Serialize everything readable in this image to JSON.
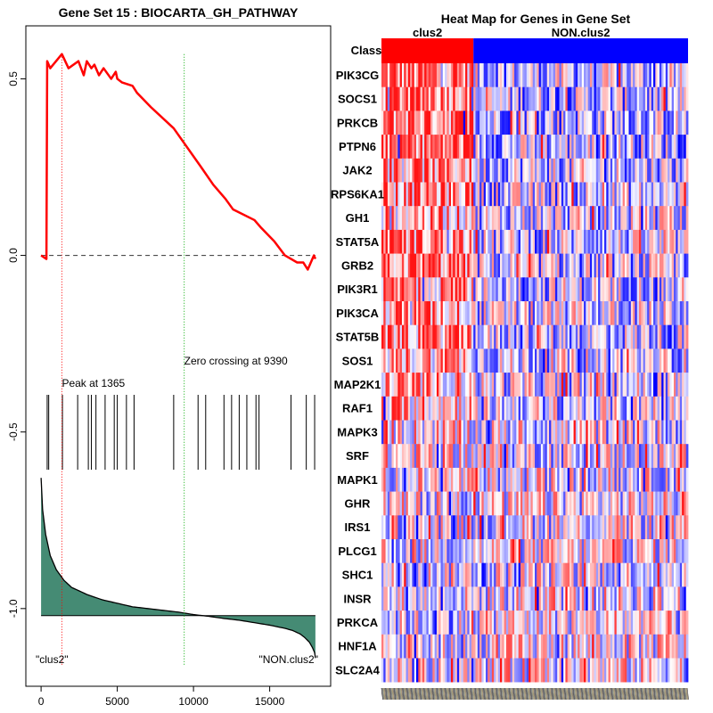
{
  "chart_data": [
    {
      "type": "line",
      "title": "Gene Set  15 : BIOCARTA_GH_PATHWAY",
      "xlim": [
        -1000,
        19000
      ],
      "ylim": [
        -1.22,
        0.65
      ],
      "x_ticks": [
        0,
        5000,
        10000,
        15000
      ],
      "x_tick_labels": [
        "0",
        "5000",
        "10000",
        "15000"
      ],
      "y_ticks": [
        0.5,
        0.0,
        -0.5,
        -1.0
      ],
      "y_tick_labels": [
        "0.5",
        "0.0",
        "-0.5",
        "-1.0"
      ],
      "running_es": {
        "x": [
          0,
          350,
          400,
          600,
          1365,
          1800,
          2450,
          2800,
          3000,
          3300,
          3500,
          3800,
          4100,
          4600,
          4900,
          5000,
          5300,
          6000,
          6300,
          7200,
          8700,
          10500,
          11300,
          12100,
          12600,
          14000,
          14400,
          15300,
          16000,
          16800,
          17200,
          17500,
          17900,
          18000
        ],
        "y": [
          0.0,
          -0.01,
          0.55,
          0.53,
          0.57,
          0.53,
          0.55,
          0.51,
          0.55,
          0.53,
          0.54,
          0.51,
          0.53,
          0.5,
          0.52,
          0.5,
          0.49,
          0.48,
          0.46,
          0.42,
          0.36,
          0.25,
          0.2,
          0.16,
          0.13,
          0.1,
          0.08,
          0.04,
          0.0,
          -0.02,
          -0.02,
          -0.04,
          0.0,
          -0.01
        ]
      },
      "zero_line": 0.0,
      "peak": {
        "x": 1365,
        "label": "Peak at 1365"
      },
      "zero_crossing": {
        "x": 9390,
        "label": "Zero crossing at 9390"
      },
      "hit_positions": [
        400,
        500,
        1400,
        2400,
        3100,
        3300,
        3600,
        4200,
        4800,
        5000,
        5600,
        6100,
        8700,
        10300,
        10800,
        12000,
        12500,
        13000,
        13500,
        14100,
        14300,
        16400,
        17400,
        17950
      ],
      "ranked_metric": {
        "x": [
          0,
          100,
          300,
          600,
          1000,
          1500,
          2000,
          3000,
          4000,
          5000,
          6000,
          7000,
          8000,
          9000,
          10000,
          11000,
          12000,
          13000,
          14000,
          15000,
          16000,
          16500,
          17000,
          17300,
          17600,
          17800,
          17950,
          18000
        ],
        "y": [
          -0.63,
          -0.72,
          -0.79,
          -0.85,
          -0.89,
          -0.92,
          -0.94,
          -0.96,
          -0.975,
          -0.985,
          -0.995,
          -1.0,
          -1.005,
          -1.01,
          -1.017,
          -1.022,
          -1.028,
          -1.033,
          -1.04,
          -1.047,
          -1.056,
          -1.062,
          -1.072,
          -1.082,
          -1.095,
          -1.11,
          -1.125,
          -1.14
        ],
        "baseline": -1.02
      },
      "left_label": "\"clus2\"",
      "right_label": "\"NON.clus2\"",
      "colors": {
        "es_line": "#ff0000",
        "peak_line": "#ff0000",
        "zero_cross_line": "#00aa00",
        "metric_fill": "#458b74"
      }
    },
    {
      "type": "heatmap",
      "title": "Heat Map for Genes in Gene Set",
      "class_label": "Class",
      "classes": [
        {
          "name": "clus2",
          "fraction": 0.3,
          "color": "#ff0000"
        },
        {
          "name": "NON.clus2",
          "fraction": 0.7,
          "color": "#0000ff"
        }
      ],
      "genes": [
        "PIK3CG",
        "SOCS1",
        "PRKCB",
        "PTPN6",
        "JAK2",
        "RPS6KA1",
        "GH1",
        "STAT5A",
        "GRB2",
        "PIK3R1",
        "PIK3CA",
        "STAT5B",
        "SOS1",
        "MAP2K1",
        "RAF1",
        "MAPK3",
        "SRF",
        "MAPK1",
        "GHR",
        "IRS1",
        "PLCG1",
        "SHC1",
        "INSR",
        "PRKCA",
        "HNF1A",
        "SLC2A4"
      ],
      "clus2_bias": [
        0.55,
        0.65,
        0.6,
        0.6,
        0.45,
        0.5,
        0.35,
        0.55,
        0.55,
        0.45,
        0.4,
        0.5,
        0.35,
        0.3,
        0.3,
        0.15,
        0.1,
        0.05,
        0.0,
        0.0,
        -0.05,
        0.0,
        -0.05,
        -0.1,
        -0.1,
        -0.15
      ]
    }
  ]
}
